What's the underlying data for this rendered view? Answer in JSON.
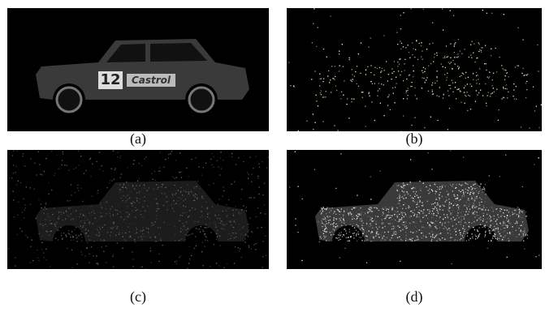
{
  "panels": [
    {
      "caption": "(a)",
      "decals": [
        "12",
        "Castrol"
      ]
    },
    {
      "caption": "(b)"
    },
    {
      "caption": "(c)"
    },
    {
      "caption": "(d)"
    }
  ]
}
